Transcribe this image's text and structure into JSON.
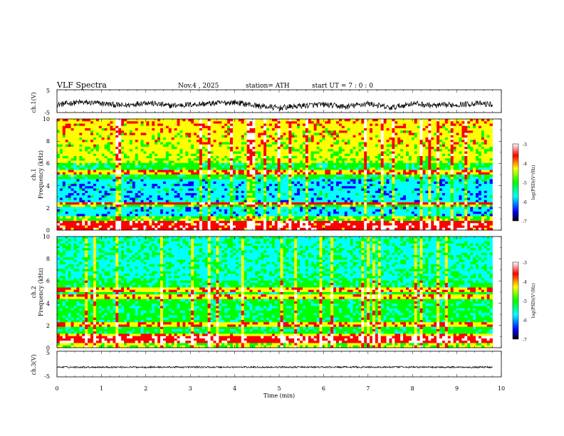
{
  "header": {
    "title": "VLF  Spectra",
    "date": "Nov.4  , 2025",
    "station": "station= ATH",
    "start": "start  UT  =    7  : 0   : 0"
  },
  "chart_data": [
    {
      "type": "line",
      "panel": "ch1-waveform",
      "ylabel": "ch.1(V)",
      "ylim": [
        -5,
        5
      ],
      "yticks": [
        "5",
        "-5"
      ],
      "xlim": [
        0,
        10
      ],
      "description_of_series": "noisy voltage trace fluctuating roughly between -4 and 1 V over 0-9.8 min",
      "series": [
        {
          "name": "ch.1",
          "x": [
            0,
            0.5,
            1,
            1.5,
            2,
            2.5,
            3,
            3.5,
            4,
            4.5,
            5,
            5.5,
            6,
            6.5,
            7,
            7.5,
            8,
            8.5,
            9,
            9.5,
            9.8
          ],
          "values": [
            -1.5,
            -0.5,
            -1,
            -2,
            -0.5,
            -2,
            -1.5,
            -1,
            -0.5,
            -2,
            -3,
            -2,
            -1.5,
            -2.5,
            -1,
            -3,
            -1,
            -2,
            -1.5,
            -1,
            -1.5
          ]
        }
      ]
    },
    {
      "type": "heatmap",
      "panel": "ch1-spectrogram",
      "ylabel_line1": "ch.1",
      "ylabel_line2": "Frequency  (kHz)",
      "ylim": [
        0,
        10
      ],
      "yticks": [
        "10",
        "8",
        "6",
        "4",
        "2",
        "0"
      ],
      "xlim": [
        0,
        9.8
      ],
      "colorbar": {
        "label": "log(PSD)(V²/Hz)",
        "range": [
          -7,
          -3
        ],
        "ticks": [
          "-3",
          "-4",
          "-5",
          "-6",
          "-7"
        ]
      },
      "lines_khz": [
        0.3,
        0.6,
        1.0,
        2.2,
        2.4,
        5.3
      ],
      "high_band_khz": [
        6,
        10
      ]
    },
    {
      "type": "heatmap",
      "panel": "ch2-spectrogram",
      "ylabel_line1": "ch.2",
      "ylabel_line2": "Frequency  (kHz)",
      "ylim": [
        0,
        10
      ],
      "yticks": [
        "10",
        "8",
        "6",
        "4",
        "2",
        "0"
      ],
      "xlim": [
        0,
        9.8
      ],
      "colorbar": {
        "label": "log(PSD)(V²/Hz)",
        "range": [
          -7,
          -3
        ],
        "ticks": [
          "-3",
          "-4",
          "-5",
          "-6",
          "-7"
        ]
      },
      "lines_khz": [
        0.6,
        1.0,
        2.0,
        4.6,
        5.3
      ]
    },
    {
      "type": "line",
      "panel": "ch3-waveform",
      "ylabel": "ch.3(V)",
      "ylim": [
        -5,
        5
      ],
      "yticks": [
        "5",
        "-5"
      ],
      "xlim": [
        0,
        10
      ],
      "series": [
        {
          "name": "ch.3",
          "x": [
            0,
            9.8
          ],
          "values": [
            -1.2,
            -1.2
          ]
        }
      ]
    }
  ],
  "xaxis": {
    "label": "Time  (min)",
    "ticks": [
      "0",
      "1",
      "2",
      "3",
      "4",
      "5",
      "6",
      "7",
      "8",
      "9",
      "10"
    ]
  },
  "colors": {
    "scale": [
      "#000000",
      "#0000ff",
      "#00ffff",
      "#00ff00",
      "#ffff00",
      "#ff0000",
      "#ffffff"
    ]
  }
}
